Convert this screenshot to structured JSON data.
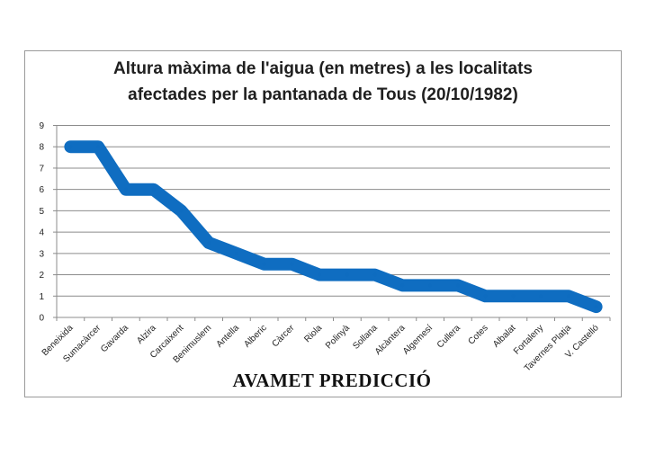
{
  "chart_data": {
    "type": "line",
    "title": [
      "Altura màxima de l'aigua (en metres) a les localitats",
      "afectades per la pantanada de Tous (20/10/1982)"
    ],
    "categories": [
      "Beneixida",
      "Sumacàrcer",
      "Gavarda",
      "Alzira",
      "Carcaixent",
      "Benimuslem",
      "Antella",
      "Alberic",
      "Càrcer",
      "Riola",
      "Polinyà",
      "Sollana",
      "Alcàntera",
      "Algemesí",
      "Cullera",
      "Cotes",
      "Albalat",
      "Fortaleny",
      "Tavernes Platja",
      "V. Castelló"
    ],
    "values": [
      8,
      8,
      6,
      6,
      5,
      3.5,
      3,
      2.5,
      2.5,
      2,
      2,
      2,
      1.5,
      1.5,
      1.5,
      1,
      1,
      1,
      1,
      0.5
    ],
    "yticks": [
      "0",
      "1",
      "2",
      "3",
      "4",
      "5",
      "6",
      "7",
      "8",
      "9"
    ],
    "ylim": [
      0,
      9
    ],
    "grid": true,
    "legend": "none",
    "line_color": "#0f6dc1"
  },
  "footer": "AVAMET PREDICCIÓ"
}
